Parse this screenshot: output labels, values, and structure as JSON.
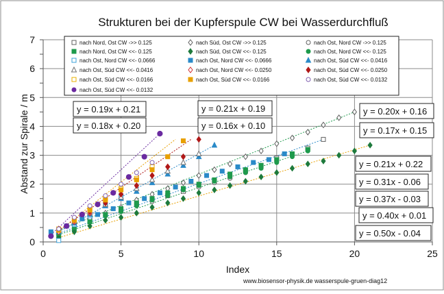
{
  "chart_data": {
    "type": "scatter",
    "title": "Strukturen bei der Kupferspule CW bei Wasserdurchfluß",
    "xlabel": "Index",
    "ylabel": "Abstand zur Spirale / m",
    "xlim": [
      0,
      25
    ],
    "ylim": [
      0,
      7
    ],
    "x_ticks": [
      "0",
      "5",
      "10",
      "15",
      "20",
      "25"
    ],
    "y_ticks": [
      "0",
      "1",
      "2",
      "3",
      "4",
      "5",
      "6",
      "7"
    ],
    "grid": true,
    "legend_position": "top",
    "footer": "www.biosensor-physik.de  wasserspule-gruen-diag12",
    "series": [
      {
        "name": "nach Nord, Ost CW ->>  0.125",
        "marker": "square-open",
        "color": "#606060",
        "x": [
          1,
          2,
          3,
          4,
          5,
          6,
          7,
          8,
          9,
          10,
          11,
          12,
          13,
          14,
          15,
          16,
          17,
          18
        ],
        "values": [
          0.3,
          0.55,
          0.75,
          0.95,
          1.1,
          1.3,
          1.5,
          1.6,
          1.75,
          1.95,
          2.1,
          2.25,
          2.45,
          2.65,
          2.9,
          3.05,
          3.25,
          3.55
        ]
      },
      {
        "name": "nach Süd, Ost CW ->>  0.125",
        "marker": "diamond-open",
        "color": "#606060",
        "x": [
          1,
          2,
          3,
          4,
          5,
          6,
          7,
          8,
          9,
          10,
          11,
          12,
          13,
          14,
          15,
          16,
          17,
          18,
          19,
          20
        ],
        "values": [
          0.4,
          0.6,
          0.8,
          1.0,
          1.2,
          1.45,
          1.65,
          1.85,
          2.05,
          2.3,
          2.5,
          2.7,
          2.95,
          3.15,
          3.4,
          3.6,
          3.8,
          4.05,
          4.3,
          4.5
        ]
      },
      {
        "name": "nach Ost, Nord CW ->>  0.125",
        "marker": "circle-open",
        "color": "#606060",
        "x": [
          1,
          2,
          3,
          4,
          5,
          6,
          7,
          8,
          9,
          10,
          11,
          12,
          13,
          14,
          15,
          16,
          17
        ],
        "values": [
          0.35,
          0.5,
          0.7,
          0.9,
          1.05,
          1.25,
          1.4,
          1.6,
          1.8,
          1.9,
          2.05,
          2.2,
          2.4,
          2.55,
          2.8,
          3.0,
          3.2
        ]
      },
      {
        "name": "nach Nord, Ost CW  <<-  0.125",
        "marker": "square",
        "color": "#1e9a4c",
        "x": [
          1,
          2,
          3,
          4,
          5,
          6,
          7,
          8,
          9,
          10,
          11,
          12,
          13,
          14,
          15,
          16,
          17
        ],
        "values": [
          0.2,
          0.45,
          0.7,
          0.95,
          1.15,
          1.35,
          1.5,
          1.7,
          1.85,
          2.0,
          2.15,
          2.35,
          2.5,
          2.65,
          2.85,
          3.05,
          3.2
        ]
      },
      {
        "name": "nach Süd, Ost CW  <<-  0.125",
        "marker": "diamond",
        "color": "#1e7a3c",
        "x": [
          1,
          2,
          3,
          4,
          5,
          6,
          7,
          8,
          9,
          10,
          11,
          12,
          13,
          14,
          15,
          16,
          17,
          18,
          19,
          20,
          21
        ],
        "values": [
          0.15,
          0.35,
          0.55,
          0.75,
          0.85,
          1.0,
          1.2,
          1.35,
          1.5,
          1.7,
          1.8,
          1.95,
          2.1,
          2.25,
          2.4,
          2.55,
          2.7,
          2.8,
          3.0,
          3.15,
          3.35
        ]
      },
      {
        "name": "nach Ost, Nord CW  <<-  0.125",
        "marker": "circle",
        "color": "#1e9a4c",
        "x": [
          1,
          2,
          3,
          4,
          5,
          6,
          7,
          8,
          9,
          10,
          11,
          12,
          13,
          14,
          15,
          16,
          17
        ],
        "values": [
          0.3,
          0.5,
          0.7,
          0.9,
          1.05,
          1.25,
          1.45,
          1.6,
          1.8,
          1.95,
          2.1,
          2.25,
          2.4,
          2.55,
          2.75,
          2.95,
          3.15
        ]
      },
      {
        "name": "nach Ost, Nord CW <<-  0.0666",
        "marker": "square-open",
        "color": "#3aa0d8",
        "x": [
          1,
          2,
          3,
          4,
          5
        ],
        "values": [
          0.05,
          0.6,
          0.9,
          1.3,
          1.6
        ]
      },
      {
        "name": "nach Ost, Nord CW <<-  0.0666",
        "marker": "square",
        "color": "#2a8ac8",
        "x": [
          0.5,
          1.5,
          2.5,
          3.5,
          4.5,
          5.5,
          6.5,
          7.5,
          8.5,
          9.5,
          10.5,
          11.5,
          12.5,
          13.5,
          14.5,
          15.5
        ],
        "values": [
          0.35,
          0.55,
          0.8,
          0.95,
          1.15,
          1.35,
          1.5,
          1.7,
          1.9,
          2.1,
          2.3,
          2.45,
          2.6,
          2.75,
          2.85,
          3.05
        ]
      },
      {
        "name": "nach Ost, Süd CW  <<-  0.0416",
        "marker": "triangle",
        "color": "#2a8ac8",
        "x": [
          1,
          2,
          3,
          4,
          5,
          6,
          7,
          8,
          9,
          10,
          11
        ],
        "values": [
          0.35,
          0.65,
          0.95,
          1.25,
          1.5,
          1.75,
          2.05,
          2.35,
          2.65,
          2.95,
          3.35
        ]
      },
      {
        "name": "nach Ost, Süd CW  <<-  0.0416",
        "marker": "triangle-open",
        "color": "#707070",
        "x": [
          1,
          2,
          3,
          4,
          5,
          6,
          7,
          8,
          9,
          10
        ],
        "values": [
          0.4,
          0.7,
          1.0,
          1.3,
          1.55,
          1.85,
          2.15,
          2.45,
          2.75,
          3.05
        ]
      },
      {
        "name": "nach Ost, Nord CW <<-  0.0250",
        "marker": "diamond-open",
        "color": "#d03030",
        "x": [
          1,
          2,
          3,
          4,
          5,
          6,
          7,
          8
        ],
        "values": [
          0.35,
          0.7,
          1.0,
          1.35,
          1.65,
          1.95,
          2.3,
          2.6
        ]
      },
      {
        "name": "nach Ost, Süd CW <<-  0.0250",
        "marker": "diamond",
        "color": "#b01818",
        "x": [
          1,
          2,
          3,
          4,
          5,
          6,
          7,
          8,
          9,
          10
        ],
        "values": [
          0.45,
          0.75,
          1.05,
          1.35,
          1.65,
          1.95,
          2.3,
          2.6,
          2.95,
          3.55
        ]
      },
      {
        "name": "nach Ost, Süd CW  <<-  0.0166",
        "marker": "square-open",
        "color": "#e8b000",
        "x": [
          1,
          2,
          3,
          4,
          5,
          6,
          7
        ],
        "values": [
          0.45,
          0.8,
          1.15,
          1.5,
          1.85,
          2.2,
          2.6
        ]
      },
      {
        "name": "nach Ost, Süd CW <<-  0.0166",
        "marker": "square",
        "color": "#e8a000",
        "x": [
          1,
          2,
          3,
          4,
          5,
          6,
          7,
          8,
          9
        ],
        "values": [
          0.4,
          0.75,
          1.1,
          1.45,
          1.8,
          2.15,
          2.5,
          2.95,
          3.5
        ]
      },
      {
        "name": "nach Ost, Süd CW  <<-  0.0132",
        "marker": "circle-open",
        "color": "#8060b0",
        "x": [
          1,
          2,
          3,
          4,
          5,
          6,
          7
        ],
        "values": [
          0.45,
          0.85,
          1.25,
          1.6,
          2.0,
          2.4,
          2.75
        ]
      },
      {
        "name": "nach Ost, Süd CW <<-  0.0132",
        "marker": "circle",
        "color": "#6a2aa0",
        "x": [
          0.5,
          1.5,
          2.5,
          3.5,
          4.5,
          5.5,
          6.5,
          7.5
        ],
        "values": [
          0.2,
          0.55,
          0.95,
          1.3,
          1.7,
          2.25,
          2.95,
          3.75
        ]
      }
    ],
    "fit_lines": [
      {
        "x": [
          0.5,
          7.5
        ],
        "y": [
          0.25,
          3.75
        ],
        "color": "#6a2aa0"
      },
      {
        "x": [
          1,
          8.5
        ],
        "y": [
          0.38,
          3.55
        ],
        "color": "#e8a000"
      },
      {
        "x": [
          1,
          9.5
        ],
        "y": [
          0.4,
          3.55
        ],
        "color": "#b01818"
      },
      {
        "x": [
          1,
          11
        ],
        "y": [
          0.35,
          3.35
        ],
        "color": "#2a8ac8"
      },
      {
        "x": [
          1,
          20
        ],
        "y": [
          0.4,
          4.5
        ],
        "color": "#1e9a4c"
      },
      {
        "x": [
          1,
          18
        ],
        "y": [
          0.3,
          3.55
        ],
        "color": "#2a8ac8"
      },
      {
        "x": [
          1,
          21
        ],
        "y": [
          0.15,
          3.35
        ],
        "color": "#e8a000"
      },
      {
        "x": [
          1,
          17
        ],
        "y": [
          0.25,
          3.15
        ],
        "color": "#1e9a4c"
      }
    ],
    "equations": [
      {
        "text": "y = 0.19x + 0.21",
        "pos": "ul1"
      },
      {
        "text": "y = 0.18x + 0.20",
        "pos": "ul2"
      },
      {
        "text": "y = 0.21x + 0.19",
        "pos": "um1"
      },
      {
        "text": "y = 0.16x + 0.10",
        "pos": "um2"
      },
      {
        "text": "y = 0.20x + 0.16",
        "pos": "r1"
      },
      {
        "text": "y = 0.17x + 0.15",
        "pos": "r2"
      },
      {
        "text": "y = 0.21x + 0.22",
        "pos": "r3"
      },
      {
        "text": "y = 0.31x - 0.06",
        "pos": "r4"
      },
      {
        "text": "y = 0.37x - 0.03",
        "pos": "r5"
      },
      {
        "text": "y = 0.40x + 0.01",
        "pos": "r6"
      },
      {
        "text": "y = 0.50x - 0.04",
        "pos": "r7"
      }
    ]
  }
}
